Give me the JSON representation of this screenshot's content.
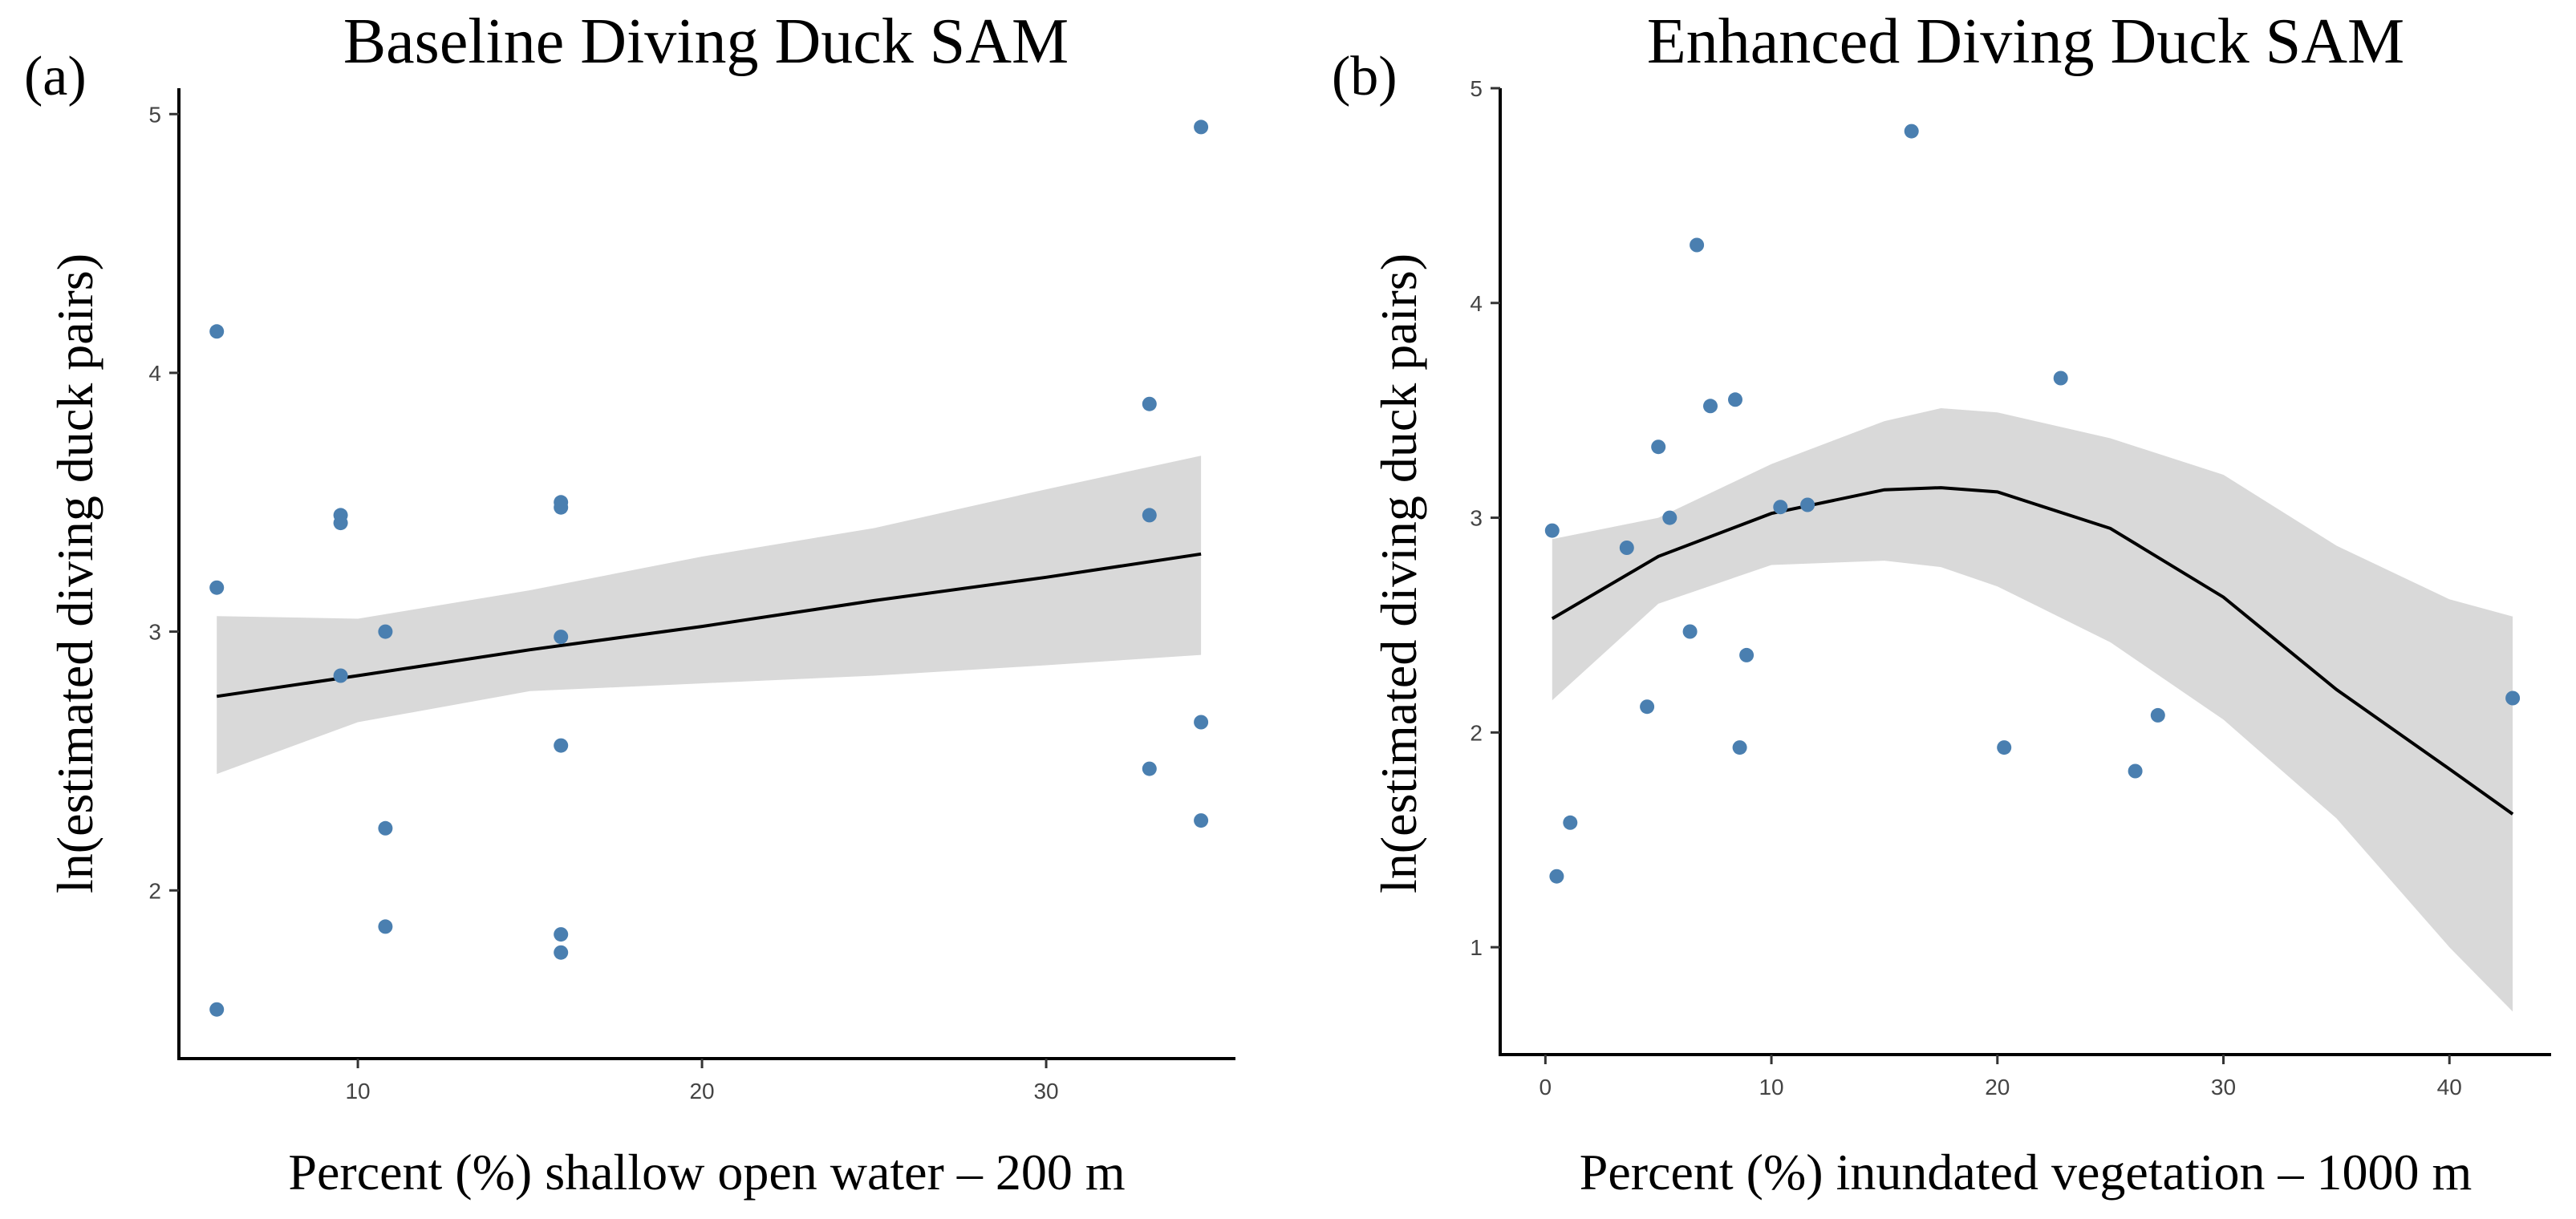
{
  "chart_data": [
    {
      "type": "scatter",
      "panel_label": "(a)",
      "title": "Baseline Diving Duck SAM",
      "xlabel": "Percent (%) shallow open water – 200 m",
      "ylabel": "ln(estimated diving duck pairs)",
      "xlim": [
        4.8,
        35.5
      ],
      "ylim": [
        1.35,
        5.1
      ],
      "xticks": [
        10,
        20,
        30
      ],
      "yticks": [
        2,
        3,
        4,
        5
      ],
      "grid": false,
      "points": [
        {
          "x": 5.9,
          "y": 4.16
        },
        {
          "x": 5.9,
          "y": 3.17
        },
        {
          "x": 5.9,
          "y": 1.54
        },
        {
          "x": 9.5,
          "y": 3.45
        },
        {
          "x": 9.5,
          "y": 3.42
        },
        {
          "x": 9.5,
          "y": 2.83
        },
        {
          "x": 10.8,
          "y": 3.0
        },
        {
          "x": 10.8,
          "y": 2.24
        },
        {
          "x": 10.8,
          "y": 1.86
        },
        {
          "x": 15.9,
          "y": 3.5
        },
        {
          "x": 15.9,
          "y": 3.48
        },
        {
          "x": 15.9,
          "y": 2.98
        },
        {
          "x": 15.9,
          "y": 2.56
        },
        {
          "x": 15.9,
          "y": 1.83
        },
        {
          "x": 15.9,
          "y": 1.76
        },
        {
          "x": 33.0,
          "y": 3.88
        },
        {
          "x": 33.0,
          "y": 3.45
        },
        {
          "x": 33.0,
          "y": 2.47
        },
        {
          "x": 34.5,
          "y": 4.95
        },
        {
          "x": 34.5,
          "y": 2.65
        },
        {
          "x": 34.5,
          "y": 2.27
        }
      ],
      "fit": {
        "x": [
          5.9,
          10,
          15,
          20,
          25,
          30,
          34.5
        ],
        "y": [
          2.75,
          2.83,
          2.93,
          3.02,
          3.12,
          3.21,
          3.3
        ],
        "lower": [
          2.45,
          2.65,
          2.77,
          2.8,
          2.83,
          2.87,
          2.91
        ],
        "upper": [
          3.06,
          3.05,
          3.16,
          3.29,
          3.4,
          3.55,
          3.68
        ]
      }
    },
    {
      "type": "scatter",
      "panel_label": "(b)",
      "title": "Enhanced Diving Duck SAM",
      "xlabel": "Percent (%) inundated vegetation – 1000 m",
      "ylabel": "ln(estimated diving duck pairs)",
      "xlim": [
        -2,
        44.5
      ],
      "ylim": [
        0.5,
        5
      ],
      "xticks": [
        0,
        10,
        20,
        30,
        40
      ],
      "yticks": [
        1,
        2,
        3,
        4,
        5
      ],
      "grid": false,
      "points": [
        {
          "x": 0.3,
          "y": 2.94
        },
        {
          "x": 0.5,
          "y": 1.33
        },
        {
          "x": 1.1,
          "y": 1.58
        },
        {
          "x": 3.6,
          "y": 2.86
        },
        {
          "x": 4.5,
          "y": 2.12
        },
        {
          "x": 5.0,
          "y": 3.33
        },
        {
          "x": 5.5,
          "y": 3.0
        },
        {
          "x": 6.4,
          "y": 2.47
        },
        {
          "x": 6.7,
          "y": 4.27
        },
        {
          "x": 7.3,
          "y": 3.52
        },
        {
          "x": 8.4,
          "y": 3.55
        },
        {
          "x": 8.6,
          "y": 1.93
        },
        {
          "x": 8.9,
          "y": 2.36
        },
        {
          "x": 10.4,
          "y": 3.05
        },
        {
          "x": 11.6,
          "y": 3.06
        },
        {
          "x": 16.2,
          "y": 4.8
        },
        {
          "x": 20.3,
          "y": 1.93
        },
        {
          "x": 22.8,
          "y": 3.65
        },
        {
          "x": 26.1,
          "y": 1.82
        },
        {
          "x": 27.1,
          "y": 2.08
        },
        {
          "x": 42.8,
          "y": 2.16
        }
      ],
      "fit": {
        "x": [
          0.3,
          5,
          10,
          15,
          17.5,
          20,
          25,
          30,
          35,
          40,
          42.8
        ],
        "y": [
          2.53,
          2.82,
          3.02,
          3.13,
          3.14,
          3.12,
          2.95,
          2.63,
          2.2,
          1.83,
          1.62
        ],
        "lower": [
          2.15,
          2.6,
          2.78,
          2.8,
          2.77,
          2.68,
          2.42,
          2.06,
          1.6,
          1.0,
          0.7
        ],
        "upper": [
          2.9,
          3.0,
          3.25,
          3.45,
          3.51,
          3.49,
          3.37,
          3.2,
          2.87,
          2.62,
          2.54
        ]
      }
    }
  ]
}
